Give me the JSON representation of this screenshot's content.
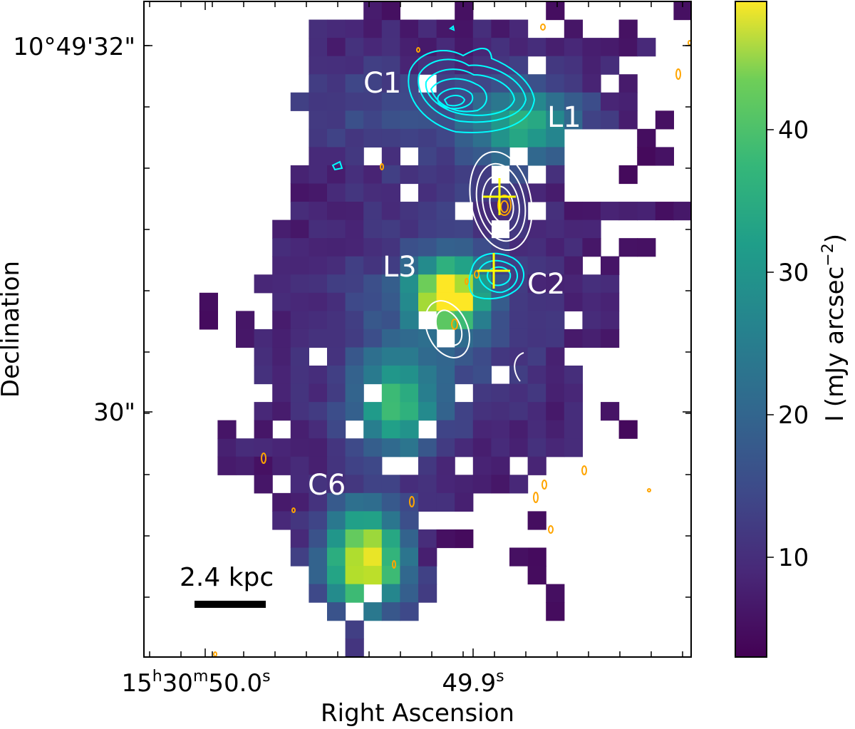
{
  "chart_data": {
    "type": "heatmap",
    "title": "",
    "xlabel": "Right Ascension",
    "ylabel": "Declination",
    "x_ticks": [
      {
        "base": "15",
        "h": "h",
        "min": "30",
        "m": "m",
        "sec": "50.0",
        "s": "s"
      },
      {
        "base": "49.9",
        "s": "s"
      }
    ],
    "y_ticks": [
      "10°49'32\"",
      "30\""
    ],
    "colorbar": {
      "label": "I (mJy arcsec",
      "label_sup": "−2",
      "label_close": ")",
      "ticks": [
        "10",
        "20",
        "30",
        "40"
      ],
      "tick_values": [
        10,
        20,
        30,
        40
      ],
      "range": [
        3,
        49
      ],
      "colormap": "viridis"
    },
    "scale_bar": "2.4 kpc",
    "annotations": {
      "c1": "C1",
      "l1": "L1",
      "l3": "L3",
      "c2": "C2",
      "c6": "C6"
    },
    "contour_colors": {
      "cyan": "#00ffff",
      "white": "#ffffff",
      "orange": "#ffa500",
      "cross": "#ffff00"
    },
    "grid": false,
    "peak_regions": [
      {
        "name": "L1",
        "value": 30
      },
      {
        "name": "L3",
        "value": 48
      },
      {
        "name": "C6",
        "value": 47
      },
      {
        "name": "middle-clump",
        "value": 30
      }
    ]
  }
}
